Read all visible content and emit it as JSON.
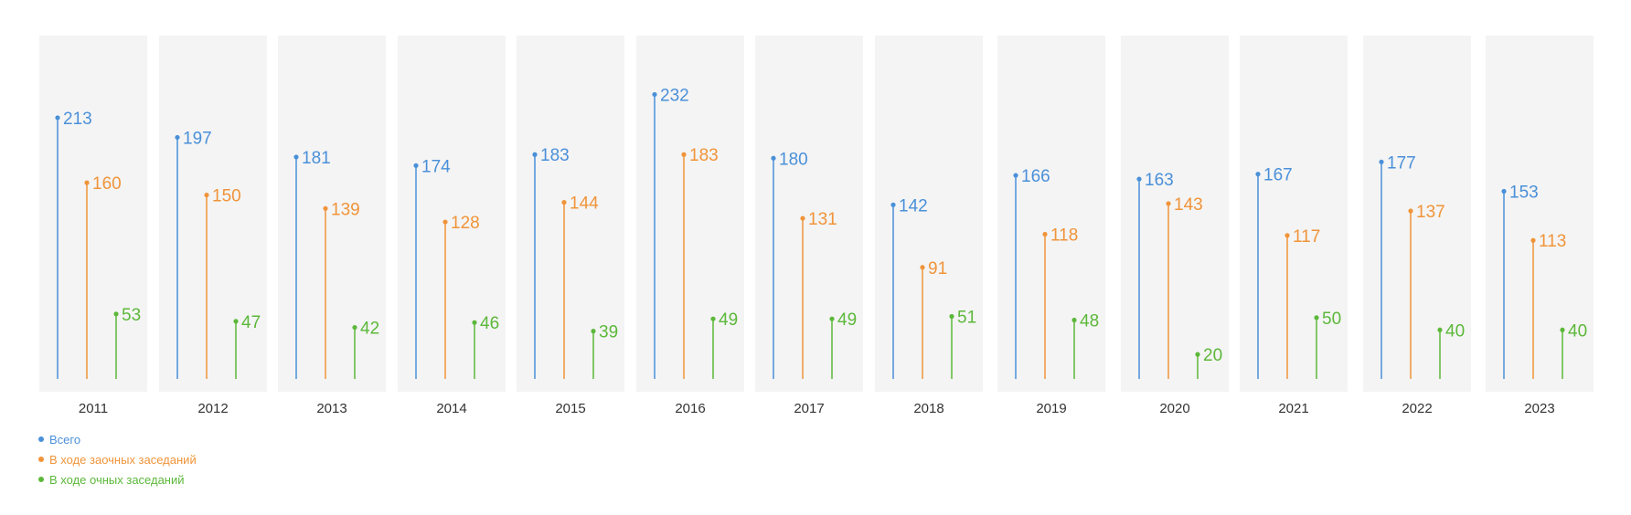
{
  "chart_data": {
    "type": "lollipop",
    "categories": [
      "2011",
      "2012",
      "2013",
      "2014",
      "2015",
      "2016",
      "2017",
      "2018",
      "2019",
      "2020",
      "2021",
      "2022",
      "2023"
    ],
    "series": [
      {
        "name": "Всего",
        "color": "#4a90d9",
        "values": [
          213,
          197,
          181,
          174,
          183,
          232,
          180,
          142,
          166,
          163,
          167,
          177,
          153
        ]
      },
      {
        "name": "В ходе заочных заседаний",
        "color": "#f0943a",
        "values": [
          160,
          150,
          139,
          128,
          144,
          183,
          131,
          91,
          118,
          143,
          117,
          137,
          113
        ]
      },
      {
        "name": "В ходе очных заседаний",
        "color": "#5cb83a",
        "values": [
          53,
          47,
          42,
          46,
          39,
          49,
          49,
          51,
          48,
          20,
          50,
          40,
          40
        ]
      }
    ],
    "ylim": [
      0,
      270
    ],
    "panel_background": "#f4f4f4",
    "legend_position": "bottom-left"
  }
}
